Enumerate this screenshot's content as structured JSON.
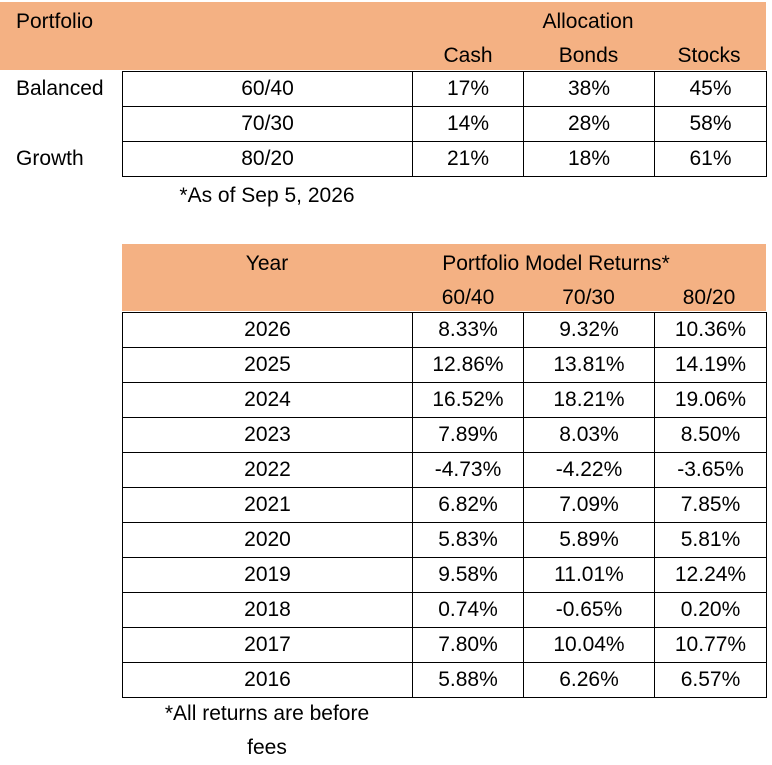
{
  "colors": {
    "header_fill": "#F4B183",
    "border": "#000000"
  },
  "allocation_table": {
    "corner_label": "Portfolio",
    "group_header": "Allocation",
    "columns": [
      "Cash",
      "Bonds",
      "Stocks"
    ],
    "rows": [
      {
        "label": "Balanced",
        "model": "60/40",
        "values": [
          "17%",
          "38%",
          "45%"
        ]
      },
      {
        "label": "",
        "model": "70/30",
        "values": [
          "14%",
          "28%",
          "58%"
        ]
      },
      {
        "label": "Growth",
        "model": "80/20",
        "values": [
          "21%",
          "18%",
          "61%"
        ]
      }
    ],
    "footnote": "*As of Sep 5, 2026"
  },
  "returns_table": {
    "year_header": "Year",
    "group_header": "Portfolio Model Returns*",
    "columns": [
      "60/40",
      "70/30",
      "80/20"
    ],
    "rows": [
      {
        "year": "2026",
        "values": [
          "8.33%",
          "9.32%",
          "10.36%"
        ]
      },
      {
        "year": "2025",
        "values": [
          "12.86%",
          "13.81%",
          "14.19%"
        ]
      },
      {
        "year": "2024",
        "values": [
          "16.52%",
          "18.21%",
          "19.06%"
        ]
      },
      {
        "year": "2023",
        "values": [
          "7.89%",
          "8.03%",
          "8.50%"
        ]
      },
      {
        "year": "2022",
        "values": [
          "-4.73%",
          "-4.22%",
          "-3.65%"
        ]
      },
      {
        "year": "2021",
        "values": [
          "6.82%",
          "7.09%",
          "7.85%"
        ]
      },
      {
        "year": "2020",
        "values": [
          "5.83%",
          "5.89%",
          "5.81%"
        ]
      },
      {
        "year": "2019",
        "values": [
          "9.58%",
          "11.01%",
          "12.24%"
        ]
      },
      {
        "year": "2018",
        "values": [
          "0.74%",
          "-0.65%",
          "0.20%"
        ]
      },
      {
        "year": "2017",
        "values": [
          "7.80%",
          "10.04%",
          "10.77%"
        ]
      },
      {
        "year": "2016",
        "values": [
          "5.88%",
          "6.26%",
          "6.57%"
        ]
      }
    ],
    "footnote_line1": "*All returns are before",
    "footnote_line2": "fees"
  }
}
